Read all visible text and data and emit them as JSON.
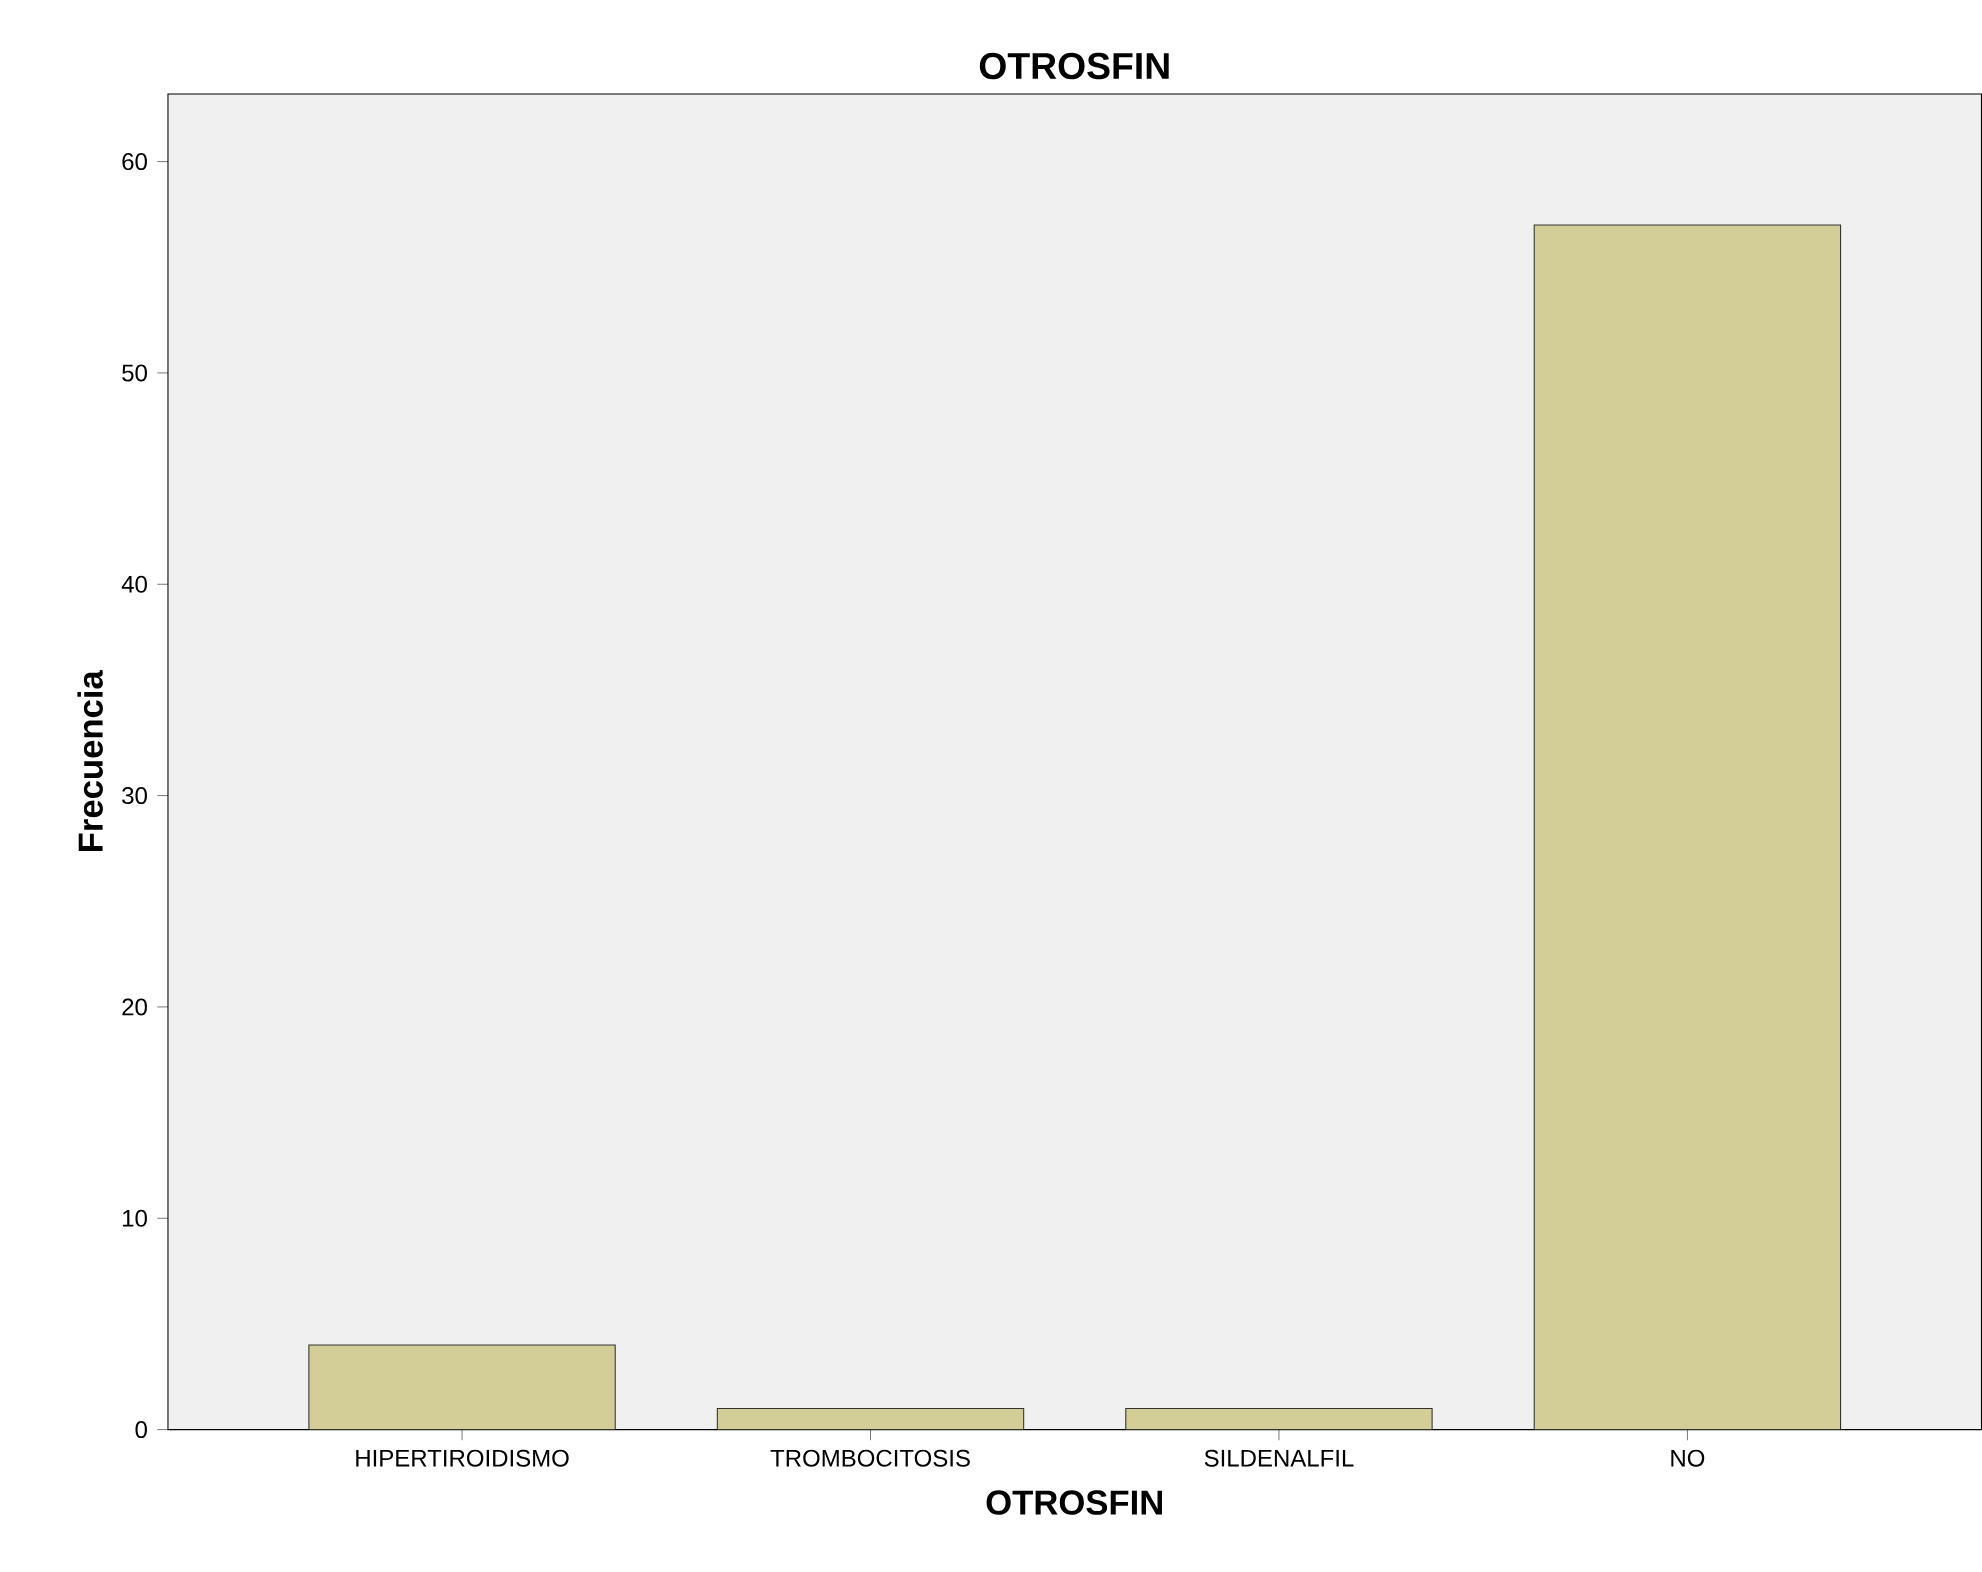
{
  "chart_data": {
    "type": "bar",
    "title": "OTROSFIN",
    "xlabel": "OTROSFIN",
    "ylabel": "Frecuencia",
    "categories": [
      "HIPERTIROIDISMO",
      "TROMBOCITOSIS",
      "SILDENALFIL",
      "NO"
    ],
    "values": [
      4,
      1,
      1,
      57
    ],
    "color": "#d3ce97",
    "ylim": [
      0,
      63.2
    ],
    "yticks": [
      0,
      10,
      20,
      30,
      40,
      50,
      60
    ]
  }
}
